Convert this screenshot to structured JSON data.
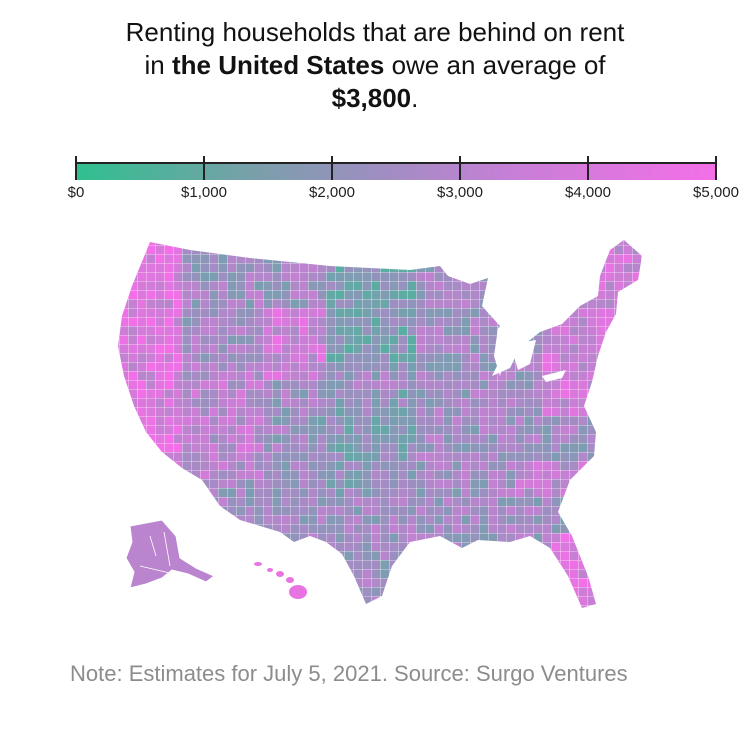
{
  "chart_data": {
    "type": "choropleth",
    "title": {
      "line1": "Renting households that are behind on rent",
      "line2_pre": "in ",
      "line2_bold": "the United States",
      "line2_post": " owe an average of",
      "line3_bold": "$3,800",
      "line3_post": "."
    },
    "average_debt": 3800,
    "legend": {
      "min": 0,
      "max": 5000,
      "ticks": [
        {
          "value": 0,
          "label": "$0"
        },
        {
          "value": 1000,
          "label": "$1,000"
        },
        {
          "value": 2000,
          "label": "$2,000"
        },
        {
          "value": 3000,
          "label": "$3,000"
        },
        {
          "value": 4000,
          "label": "$4,000"
        },
        {
          "value": 5000,
          "label": "$5,000"
        }
      ],
      "color_low": "#2fc08f",
      "color_mid": "#9a90bf",
      "color_high": "#f36fe8"
    },
    "regions": [
      "United States (by county)",
      "Alaska",
      "Hawaii"
    ],
    "note": "Note: Estimates for July 5, 2021. Source: Surgo Ventures"
  }
}
